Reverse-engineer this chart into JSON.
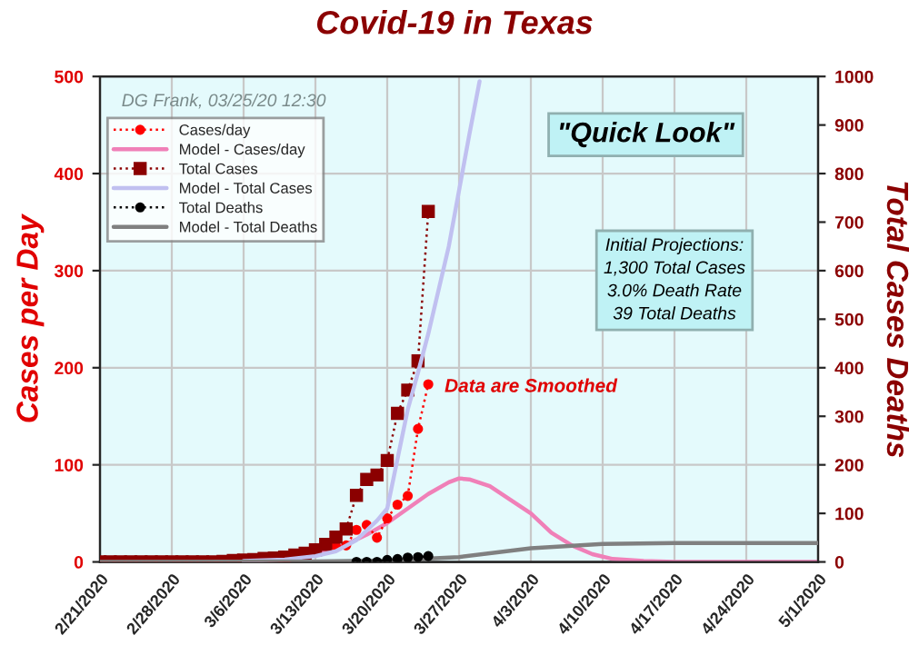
{
  "chart_data": {
    "type": "line",
    "title": "Covid-19 in Texas",
    "ylabel": "Cases per Day",
    "y2label": "Total Cases Deaths",
    "annotations": [
      "DG Frank, 03/25/20 12:30",
      "\"Quick Look\"",
      "Initial Projections:\n1,300 Total Cases\n3.0% Death Rate\n39 Total Deaths",
      "Data are Smoothed"
    ],
    "series": [
      {
        "name": "Cases/day",
        "color": "#ff0000",
        "marker": "circle",
        "line_style": "dotted",
        "x": [
          "2020-03-15",
          "2020-03-16",
          "2020-03-17",
          "2020-03-18",
          "2020-03-19",
          "2020-03-20",
          "2020-03-21",
          "2020-03-22",
          "2020-03-23",
          "2020-03-24"
        ],
        "values": [
          16,
          17,
          33,
          38,
          25,
          45,
          59,
          68,
          137,
          183
        ]
      },
      {
        "name": "Model - Cases/day",
        "color": "#f080b8",
        "marker": "none",
        "line_style": "solid",
        "x": [
          "2020-03-06",
          "2020-03-10",
          "2020-03-13",
          "2020-03-16",
          "2020-03-18",
          "2020-03-20",
          "2020-03-22",
          "2020-03-24",
          "2020-03-26",
          "2020-03-27",
          "2020-03-28",
          "2020-03-30",
          "2020-04-01",
          "2020-04-03",
          "2020-04-05",
          "2020-04-07",
          "2020-04-09",
          "2020-04-11",
          "2020-04-14",
          "2020-04-17",
          "2020-05-01"
        ],
        "values": [
          1,
          3,
          7,
          18,
          28,
          40,
          55,
          70,
          82,
          86,
          85,
          78,
          64,
          50,
          30,
          17,
          8,
          3,
          1,
          0,
          0
        ]
      },
      {
        "name": "Total Cases",
        "color": "#8b0000",
        "marker": "square",
        "line_style": "dotted",
        "axis": "y2",
        "x": [
          "2020-02-21",
          "2020-02-22",
          "2020-02-23",
          "2020-02-24",
          "2020-02-25",
          "2020-02-26",
          "2020-02-27",
          "2020-02-28",
          "2020-02-29",
          "2020-03-01",
          "2020-03-02",
          "2020-03-03",
          "2020-03-04",
          "2020-03-05",
          "2020-03-06",
          "2020-03-07",
          "2020-03-08",
          "2020-03-09",
          "2020-03-10",
          "2020-03-11",
          "2020-03-12",
          "2020-03-13",
          "2020-03-14",
          "2020-03-15",
          "2020-03-16",
          "2020-03-17",
          "2020-03-18",
          "2020-03-19",
          "2020-03-20",
          "2020-03-21",
          "2020-03-22",
          "2020-03-23",
          "2020-03-24"
        ],
        "values": [
          0,
          0,
          0,
          0,
          0,
          0,
          0,
          0,
          0,
          0,
          0,
          0,
          1,
          3,
          4,
          5,
          7,
          8,
          10,
          14,
          18,
          25,
          36,
          51,
          68,
          137,
          170,
          179,
          209,
          306,
          354,
          414,
          722
        ]
      },
      {
        "name": "Model - Total Cases",
        "color": "#c0c0f0",
        "marker": "none",
        "line_style": "solid",
        "axis": "y2",
        "x": [
          "2020-03-06",
          "2020-03-10",
          "2020-03-13",
          "2020-03-15",
          "2020-03-17",
          "2020-03-19",
          "2020-03-20",
          "2020-03-22",
          "2020-03-23",
          "2020-03-24",
          "2020-03-26",
          "2020-03-28",
          "2020-03-29"
        ],
        "values": [
          2,
          5,
          12,
          22,
          45,
          85,
          110,
          314,
          390,
          470,
          650,
          880,
          990
        ]
      },
      {
        "name": "Total Deaths",
        "color": "#000000",
        "marker": "circle",
        "line_style": "dotted",
        "axis": "y2",
        "x": [
          "2020-03-17",
          "2020-03-18",
          "2020-03-19",
          "2020-03-20",
          "2020-03-21",
          "2020-03-22",
          "2020-03-23",
          "2020-03-24"
        ],
        "values": [
          0,
          0,
          0,
          4,
          6,
          9,
          10,
          12
        ]
      },
      {
        "name": "Model - Total Deaths",
        "color": "#808080",
        "marker": "none",
        "line_style": "solid",
        "axis": "y2",
        "x": [
          "2020-02-21",
          "2020-03-13",
          "2020-03-20",
          "2020-03-27",
          "2020-04-03",
          "2020-04-10",
          "2020-04-17",
          "2020-05-01"
        ],
        "values": [
          0,
          1,
          3,
          10,
          28,
          37,
          39,
          39
        ]
      }
    ],
    "xlim": [
      "2020-02-21",
      "2020-05-01"
    ],
    "xticks": [
      {
        "value": "2020-02-21",
        "label": "2/21/2020"
      },
      {
        "value": "2020-02-28",
        "label": "2/28/2020"
      },
      {
        "value": "2020-03-06",
        "label": "3/6/2020"
      },
      {
        "value": "2020-03-13",
        "label": "3/13/2020"
      },
      {
        "value": "2020-03-20",
        "label": "3/20/2020"
      },
      {
        "value": "2020-03-27",
        "label": "3/27/2020"
      },
      {
        "value": "2020-04-03",
        "label": "4/3/2020"
      },
      {
        "value": "2020-04-10",
        "label": "4/10/2020"
      },
      {
        "value": "2020-04-17",
        "label": "4/17/2020"
      },
      {
        "value": "2020-04-24",
        "label": "4/24/2020"
      },
      {
        "value": "2020-05-01",
        "label": "5/1/2020"
      }
    ],
    "ylim": [
      0,
      500
    ],
    "yticks": [
      0,
      100,
      200,
      300,
      400,
      500
    ],
    "y2lim": [
      0,
      1000
    ],
    "y2ticks": [
      0,
      100,
      200,
      300,
      400,
      500,
      600,
      700,
      800,
      900,
      1000
    ],
    "grid": true,
    "legend": "top left"
  }
}
